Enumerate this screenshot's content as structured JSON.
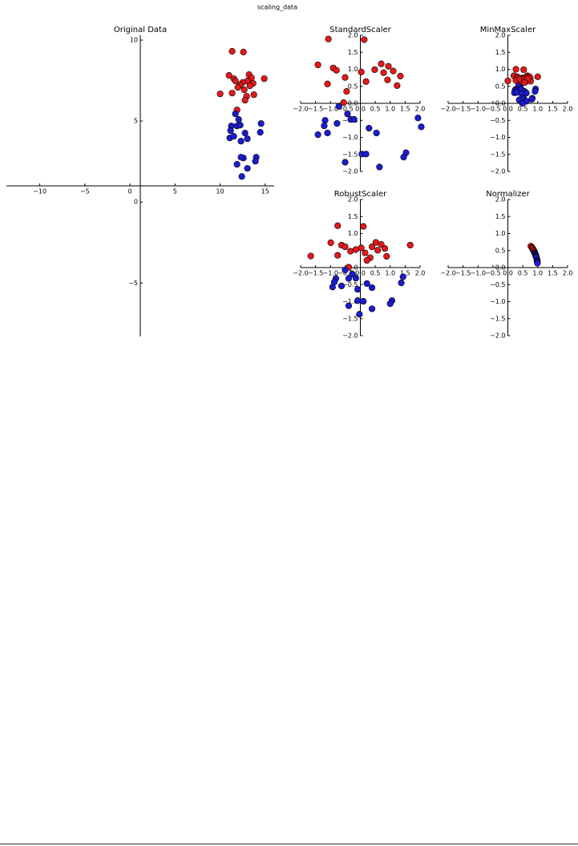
{
  "title": "scaling_data",
  "chart_data": [
    {
      "type": "scatter",
      "title": "Original Data",
      "spines": "center",
      "xlim": [
        -13.7,
        16
      ],
      "ylim": [
        -8.3,
        10.3
      ],
      "xticks": [
        {
          "value": -10,
          "label": "−10"
        },
        {
          "value": -5,
          "label": "−5"
        },
        0,
        5,
        10,
        15
      ],
      "yticks": [
        {
          "value": -5,
          "label": "−5"
        },
        0,
        5,
        10
      ],
      "series": [
        {
          "color": "#e31a1c",
          "x": [
            11.34,
            12.59,
            10.99,
            11.52,
            11.7,
            13.21,
            13.48,
            13.03,
            12.5,
            12.23,
            13.66,
            14.9,
            10.01,
            11.34,
            11.97,
            12.68,
            12.94,
            13.75,
            13.3,
            12.77,
            11.88
          ],
          "y": [
            9.31,
            9.26,
            7.82,
            7.62,
            7.48,
            7.87,
            7.67,
            7.48,
            7.38,
            7.23,
            7.33,
            7.62,
            6.68,
            6.73,
            7.08,
            6.93,
            6.53,
            6.63,
            7.18,
            6.29,
            5.69
          ]
        },
        {
          "color": "#1c1ccf",
          "x": [
            12.06,
            11.7,
            11.25,
            11.88,
            12.23,
            11.17,
            12.77,
            11.08,
            11.52,
            13.03,
            14.55,
            14.46,
            12.32,
            14.01,
            12.59,
            12.32,
            13.92,
            11.88,
            13.03,
            12.41
          ],
          "y": [
            5.1,
            5.45,
            4.7,
            4.7,
            4.75,
            4.41,
            4.26,
            3.96,
            4.06,
            3.91,
            4.85,
            4.31,
            3.76,
            2.77,
            2.72,
            2.77,
            2.52,
            2.33,
            2.08,
            1.58
          ]
        }
      ]
    },
    {
      "type": "scatter",
      "title": "StandardScaler",
      "spines": "center",
      "xlim": [
        -2,
        2
      ],
      "ylim": [
        -2,
        2
      ],
      "xticks": [
        {
          "value": -2,
          "label": "−2.0"
        },
        {
          "value": -1.5,
          "label": "−1.5"
        },
        {
          "value": -1,
          "label": "−1.0"
        },
        {
          "value": -0.5,
          "label": "−0.5"
        },
        {
          "value": 0,
          "label": "0.0"
        },
        0.5,
        {
          "value": 1,
          "label": "1.0"
        },
        1.5,
        {
          "value": 2,
          "label": "2.0"
        }
      ],
      "yticks": [
        {
          "value": -2,
          "label": "−2.0"
        },
        {
          "value": -1.5,
          "label": "−1.5"
        },
        {
          "value": -1,
          "label": "−1.0"
        },
        {
          "value": -0.5,
          "label": "−0.5"
        },
        {
          "value": 0,
          "label": "0.0"
        },
        0.5,
        {
          "value": 1,
          "label": "1.0"
        },
        1.5,
        {
          "value": 2,
          "label": "2.0"
        }
      ],
      "series": [
        {
          "color": "#e31a1c",
          "x": [
            -1.07,
            0.13,
            -1.42,
            -0.91,
            -0.8,
            -0.51,
            0.03,
            0.48,
            0.7,
            0.94,
            1.1,
            0.78,
            0.91,
            1.34,
            -1.1,
            -0.46,
            0.19,
            1.23,
            -0.56
          ],
          "y": [
            1.89,
            1.87,
            1.13,
            1.04,
            0.97,
            0.76,
            0.92,
            0.99,
            1.16,
            1.09,
            0.95,
            0.9,
            0.69,
            0.8,
            0.57,
            0.35,
            0.64,
            0.52,
            0.02
          ]
        },
        {
          "color": "#1c1ccf",
          "x": [
            -0.72,
            -0.43,
            -1.18,
            -1.21,
            -0.78,
            -0.32,
            -0.21,
            -1.1,
            -1.42,
            0.29,
            0.54,
            1.93,
            2.04,
            -0.51,
            0.05,
            0.19,
            0.64,
            1.53,
            1.45
          ],
          "y": [
            -0.09,
            -0.31,
            -0.5,
            -0.66,
            -0.59,
            -0.47,
            -0.47,
            -0.87,
            -0.92,
            -0.73,
            -0.87,
            -0.43,
            -0.69,
            -1.73,
            -1.49,
            -1.49,
            -1.87,
            -1.45,
            -1.58
          ]
        }
      ]
    },
    {
      "type": "scatter",
      "title": "MinMaxScaler",
      "spines": "center",
      "xlim": [
        -2,
        2
      ],
      "ylim": [
        -2,
        2
      ],
      "xticks": [
        {
          "value": -2,
          "label": "−2.0"
        },
        {
          "value": -1.5,
          "label": "−1.5"
        },
        {
          "value": -1,
          "label": "−1.0"
        },
        {
          "value": -0.5,
          "label": "−0.5"
        },
        {
          "value": 0,
          "label": "0.0"
        },
        0.5,
        {
          "value": 1,
          "label": "1.0"
        },
        1.5,
        {
          "value": 2,
          "label": "2.0"
        }
      ],
      "yticks": [
        {
          "value": -2,
          "label": "−2.0"
        },
        {
          "value": -1.5,
          "label": "−1.5"
        },
        {
          "value": -1,
          "label": "−1.0"
        },
        {
          "value": -0.5,
          "label": "−0.5"
        },
        {
          "value": 0,
          "label": "0.0"
        },
        0.5,
        {
          "value": 1,
          "label": "1.0"
        },
        1.5,
        {
          "value": 2,
          "label": "2.0"
        }
      ],
      "series": [
        {
          "color": "#e31a1c",
          "x": [
            0.27,
            0.53,
            0.2,
            0.31,
            0.35,
            0.65,
            0.71,
            0.62,
            0.51,
            0.45,
            0.75,
            1.0,
            0.0,
            0.27,
            0.4,
            0.55,
            0.6,
            0.76,
            0.67,
            0.56,
            0.38
          ],
          "y": [
            1.0,
            0.99,
            0.81,
            0.78,
            0.76,
            0.81,
            0.79,
            0.76,
            0.75,
            0.73,
            0.74,
            0.78,
            0.66,
            0.67,
            0.71,
            0.69,
            0.64,
            0.65,
            0.72,
            0.61,
            0.53
          ]
        },
        {
          "color": "#1c1ccf",
          "x": [
            0.42,
            0.35,
            0.25,
            0.38,
            0.45,
            0.24,
            0.56,
            0.22,
            0.31,
            0.62,
            0.93,
            0.91,
            0.47,
            0.82,
            0.53,
            0.47,
            0.8,
            0.38,
            0.62,
            0.49
          ],
          "y": [
            0.46,
            0.5,
            0.4,
            0.4,
            0.41,
            0.37,
            0.35,
            0.31,
            0.32,
            0.3,
            0.42,
            0.35,
            0.28,
            0.15,
            0.15,
            0.15,
            0.12,
            0.1,
            0.06,
            0.0
          ]
        }
      ]
    },
    {
      "type": "scatter",
      "title": "RobustScaler",
      "spines": "center",
      "xlim": [
        -2,
        2
      ],
      "ylim": [
        -2,
        2
      ],
      "xticks": [
        {
          "value": -2,
          "label": "−2.0"
        },
        {
          "value": -1.5,
          "label": "−1.5"
        },
        {
          "value": -1,
          "label": "−1.0"
        },
        {
          "value": -0.5,
          "label": "−0.5"
        },
        {
          "value": 0,
          "label": "0.0"
        },
        0.5,
        {
          "value": 1,
          "label": "1.0"
        },
        1.5,
        {
          "value": 2,
          "label": "2.0"
        }
      ],
      "yticks": [
        {
          "value": -2,
          "label": "−2.0"
        },
        {
          "value": -1.5,
          "label": "−1.5"
        },
        {
          "value": -1,
          "label": "−1.0"
        },
        {
          "value": -0.5,
          "label": "−0.5"
        },
        {
          "value": 0,
          "label": "0.0"
        },
        0.5,
        {
          "value": 1,
          "label": "1.0"
        },
        1.5,
        {
          "value": 2,
          "label": "2.0"
        }
      ],
      "series": [
        {
          "color": "#e31a1c",
          "x": [
            -0.76,
            0.1,
            -0.99,
            -0.63,
            -0.51,
            0.52,
            0.7,
            0.39,
            0.03,
            -0.15,
            0.82,
            1.67,
            -1.66,
            -0.76,
            -0.33,
            0.16,
            0.33,
            0.88,
            0.58,
            0.22,
            -0.39
          ],
          "y": [
            1.23,
            1.21,
            0.73,
            0.66,
            0.61,
            0.74,
            0.68,
            0.61,
            0.58,
            0.53,
            0.56,
            0.66,
            0.34,
            0.36,
            0.48,
            0.43,
            0.29,
            0.33,
            0.51,
            0.21,
            0.01
          ]
        },
        {
          "color": "#1c1ccf",
          "x": [
            -0.27,
            -0.51,
            -0.82,
            -0.39,
            -0.15,
            -0.87,
            0.22,
            -0.93,
            -0.63,
            0.39,
            1.43,
            1.37,
            -0.09,
            1.06,
            0.1,
            -0.09,
            1.0,
            -0.39,
            0.39,
            -0.03
          ],
          "y": [
            -0.19,
            -0.07,
            -0.32,
            -0.32,
            -0.31,
            -0.42,
            -0.47,
            -0.57,
            -0.54,
            -0.59,
            -0.27,
            -0.45,
            -0.64,
            -0.97,
            -0.99,
            -0.97,
            -1.06,
            -1.12,
            -1.21,
            -1.37
          ]
        }
      ]
    },
    {
      "type": "scatter",
      "title": "Normalizer",
      "spines": "center",
      "xlim": [
        -2,
        2
      ],
      "ylim": [
        -2,
        2
      ],
      "xticks": [
        {
          "value": -2,
          "label": "−2.0"
        },
        {
          "value": -1.5,
          "label": "−1.5"
        },
        {
          "value": -1,
          "label": "−1.0"
        },
        {
          "value": -0.5,
          "label": "−0.5"
        },
        {
          "value": 0,
          "label": "0.0"
        },
        0.5,
        {
          "value": 1,
          "label": "1.0"
        },
        1.5,
        {
          "value": 2,
          "label": "2.0"
        }
      ],
      "yticks": [
        {
          "value": -2,
          "label": "−2.0"
        },
        {
          "value": -1.5,
          "label": "−1.5"
        },
        {
          "value": -1,
          "label": "−1.0"
        },
        {
          "value": -0.5,
          "label": "−0.5"
        },
        {
          "value": 0,
          "label": "0.0"
        },
        0.5,
        {
          "value": 1,
          "label": "1.0"
        },
        1.5,
        {
          "value": 2,
          "label": "2.0"
        }
      ],
      "series": [
        {
          "color": "#e31a1c",
          "x": [
            0.77,
            0.81,
            0.81,
            0.83,
            0.84,
            0.86,
            0.87,
            0.87,
            0.86,
            0.86,
            0.88,
            0.89,
            0.83,
            0.86,
            0.86,
            0.88,
            0.89,
            0.9,
            0.88,
            0.9,
            0.9
          ],
          "y": [
            0.63,
            0.59,
            0.58,
            0.55,
            0.54,
            0.51,
            0.49,
            0.5,
            0.51,
            0.51,
            0.47,
            0.46,
            0.56,
            0.51,
            0.51,
            0.48,
            0.45,
            0.43,
            0.48,
            0.44,
            0.43
          ]
        },
        {
          "color": "#1c1ccf",
          "x": [
            0.92,
            0.91,
            0.92,
            0.93,
            0.93,
            0.93,
            0.95,
            0.94,
            0.94,
            0.96,
            0.95,
            0.96,
            0.96,
            0.98,
            0.98,
            0.98,
            0.98,
            0.98,
            0.99,
            0.99
          ],
          "y": [
            0.39,
            0.42,
            0.39,
            0.37,
            0.36,
            0.37,
            0.32,
            0.34,
            0.33,
            0.29,
            0.32,
            0.29,
            0.29,
            0.19,
            0.21,
            0.22,
            0.18,
            0.19,
            0.16,
            0.13
          ]
        }
      ]
    }
  ]
}
